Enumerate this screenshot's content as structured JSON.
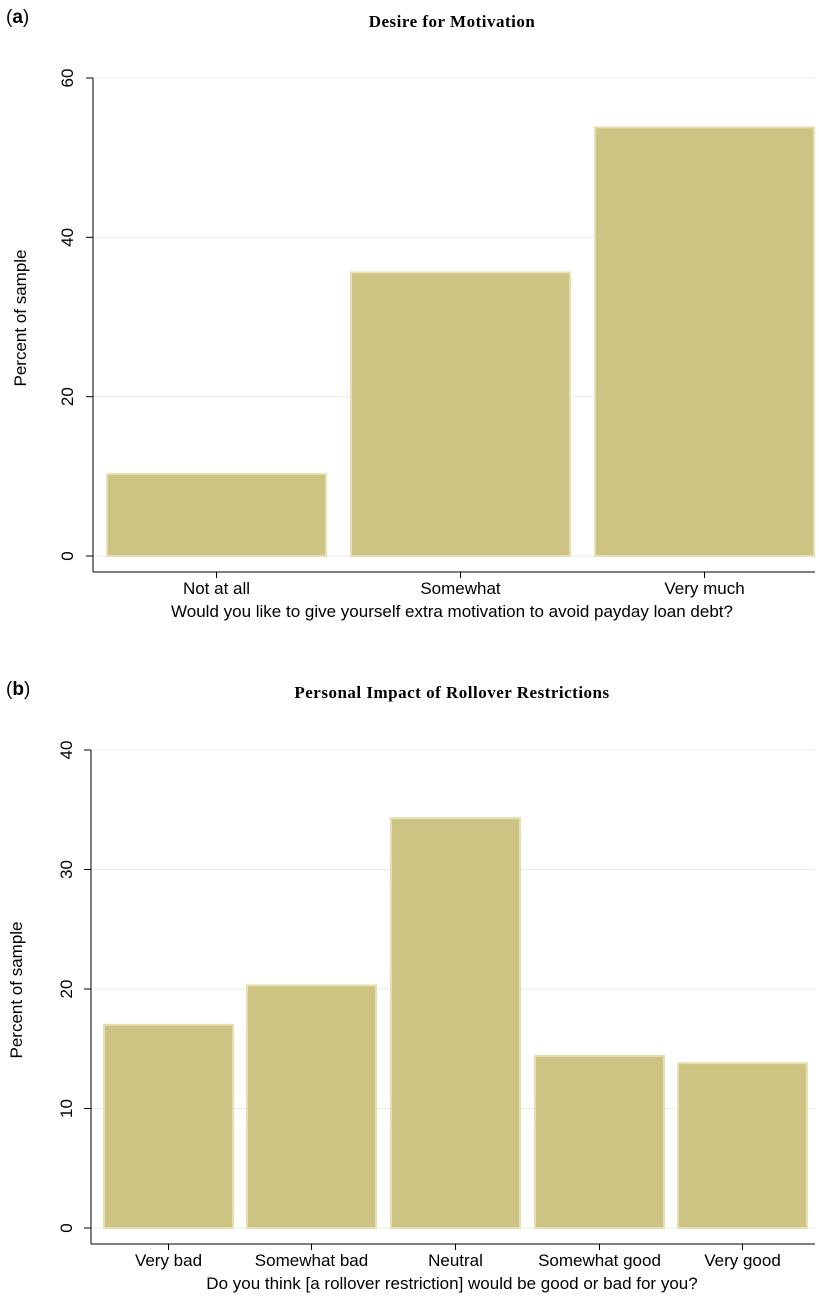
{
  "colors": {
    "bar_fill": "#cdc483",
    "bar_outline": "#e5dfb2",
    "grid": "#e6eef2"
  },
  "chart_data": [
    {
      "panel_label": "a",
      "type": "bar",
      "title": "Desire for Motivation",
      "categories": [
        "Not at all",
        "Somewhat",
        "Very much"
      ],
      "values": [
        10.3,
        35.6,
        53.8
      ],
      "xlabel": "Would you like to give yourself extra motivation to avoid payday loan debt?",
      "ylabel": "Percent of sample",
      "ylim": [
        0,
        60
      ],
      "yticks": [
        0,
        20,
        40,
        60
      ],
      "grid": true,
      "legend": "none"
    },
    {
      "panel_label": "b",
      "type": "bar",
      "title": "Personal Impact of Rollover Restrictions",
      "categories": [
        "Very bad",
        "Somewhat bad",
        "Neutral",
        "Somewhat good",
        "Very good"
      ],
      "values": [
        17.0,
        20.3,
        34.3,
        14.4,
        13.8
      ],
      "xlabel": "Do you think [a rollover restriction] would be good or bad for you?",
      "ylabel": "Percent of sample",
      "ylim": [
        0,
        40
      ],
      "yticks": [
        0,
        10,
        20,
        30,
        40
      ],
      "grid": true,
      "legend": "none"
    }
  ]
}
